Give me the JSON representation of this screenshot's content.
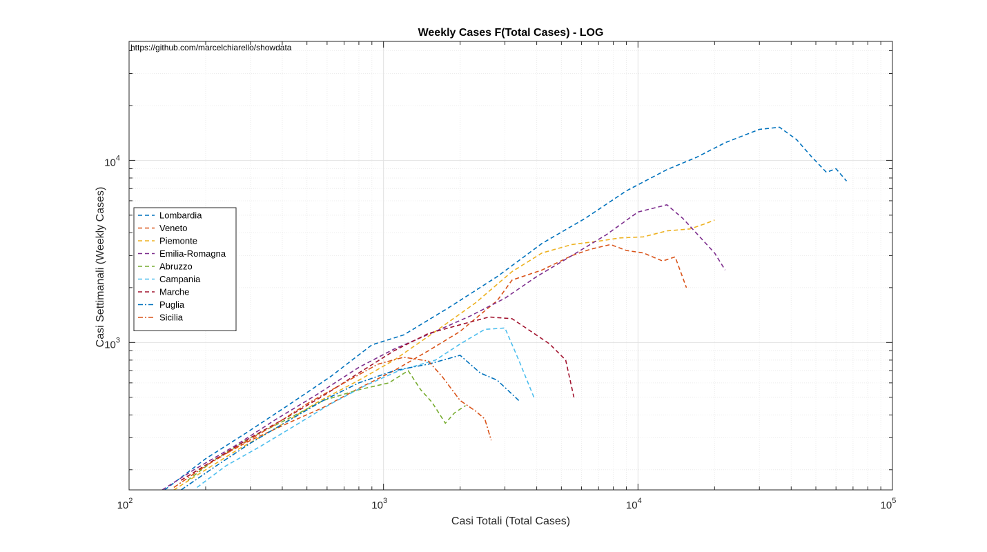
{
  "chart_data": {
    "type": "line",
    "title": "Weekly Cases F(Total Cases) - LOG",
    "xlabel": "Casi Totali (Total Cases)",
    "ylabel": "Casi Settimanali (Weekly Cases)",
    "xscale": "log",
    "yscale": "log",
    "xlim": [
      100,
      100000
    ],
    "ylim": [
      155,
      45000
    ],
    "xticks": [
      {
        "base": "10",
        "exp": "2"
      },
      {
        "base": "10",
        "exp": "3"
      },
      {
        "base": "10",
        "exp": "4"
      },
      {
        "base": "10",
        "exp": "5"
      }
    ],
    "yticks": [
      {
        "base": "10",
        "exp": "3"
      },
      {
        "base": "10",
        "exp": "4"
      }
    ],
    "grid": true,
    "legend_position": "left",
    "annotation": "https://github.com/marcelchiarello/showdata",
    "series": [
      {
        "name": "Lombardia",
        "color": "#0072BD",
        "dash": "dashed",
        "x": [
          138,
          200,
          290,
          420,
          620,
          900,
          1200,
          1800,
          2800,
          4200,
          6200,
          9000,
          13000,
          17000,
          22000,
          30000,
          36000,
          42000,
          48000,
          55000,
          60000,
          66000
        ],
        "y": [
          155,
          230,
          320,
          450,
          650,
          970,
          1100,
          1550,
          2300,
          3500,
          4800,
          6800,
          8900,
          10400,
          12500,
          14800,
          15200,
          13000,
          10500,
          8600,
          9000,
          7700
        ]
      },
      {
        "name": "Veneto",
        "color": "#D95319",
        "dash": "dashed",
        "x": [
          160,
          220,
          300,
          420,
          580,
          800,
          1100,
          1500,
          2000,
          2800,
          3200,
          4200,
          5500,
          6500,
          7800,
          9000,
          10500,
          12500,
          14000,
          15500
        ],
        "y": [
          175,
          230,
          290,
          360,
          440,
          560,
          700,
          900,
          1150,
          1700,
          2200,
          2500,
          3000,
          3250,
          3450,
          3200,
          3100,
          2800,
          2950,
          2000
        ]
      },
      {
        "name": "Piemonte",
        "color": "#EDB120",
        "dash": "dashed",
        "x": [
          150,
          200,
          270,
          380,
          550,
          800,
          1100,
          1600,
          2300,
          3200,
          4200,
          5500,
          7000,
          8500,
          10500,
          13000,
          16000,
          18500,
          20000
        ],
        "y": [
          155,
          200,
          260,
          340,
          470,
          620,
          800,
          1150,
          1650,
          2450,
          3100,
          3450,
          3600,
          3750,
          3800,
          4100,
          4200,
          4500,
          4700
        ]
      },
      {
        "name": "Emilia-Romagna",
        "color": "#7E2F8E",
        "dash": "dashed",
        "x": [
          135,
          180,
          260,
          380,
          550,
          800,
          1100,
          1600,
          2200,
          3000,
          4000,
          5500,
          7500,
          10000,
          13000,
          15000,
          17500,
          20000,
          22000
        ],
        "y": [
          155,
          200,
          270,
          380,
          520,
          730,
          920,
          1150,
          1400,
          1750,
          2300,
          3000,
          3900,
          5200,
          5700,
          4800,
          3800,
          3100,
          2500
        ]
      },
      {
        "name": "Abruzzo",
        "color": "#77AC30",
        "dash": "dashed",
        "x": [
          170,
          220,
          300,
          420,
          580,
          800,
          1050,
          1250,
          1400,
          1550,
          1750,
          1900,
          2100
        ],
        "y": [
          175,
          230,
          300,
          380,
          480,
          550,
          600,
          700,
          550,
          470,
          360,
          410,
          450
        ]
      },
      {
        "name": "Campania",
        "color": "#4DBEEE",
        "dash": "dashed",
        "x": [
          185,
          240,
          330,
          450,
          620,
          850,
          1150,
          1600,
          2000,
          2500,
          3000,
          3400,
          3900
        ],
        "y": [
          160,
          210,
          270,
          350,
          460,
          580,
          700,
          800,
          980,
          1180,
          1200,
          800,
          500
        ]
      },
      {
        "name": "Marche",
        "color": "#A2142F",
        "dash": "dashed",
        "x": [
          160,
          220,
          300,
          420,
          580,
          800,
          1100,
          1500,
          2000,
          2600,
          3200,
          3800,
          4500,
          5200,
          5600
        ],
        "y": [
          175,
          230,
          300,
          390,
          510,
          680,
          900,
          1120,
          1250,
          1380,
          1350,
          1150,
          980,
          800,
          500
        ]
      },
      {
        "name": "Puglia",
        "color": "#0072BD",
        "dash": "dashdot",
        "x": [
          160,
          220,
          300,
          420,
          580,
          800,
          1100,
          1500,
          2000,
          2400,
          2800,
          3200,
          3400
        ],
        "y": [
          155,
          210,
          280,
          370,
          480,
          600,
          700,
          760,
          850,
          680,
          620,
          520,
          480
        ]
      },
      {
        "name": "Sicilia",
        "color": "#D95319",
        "dash": "dashdot",
        "x": [
          150,
          200,
          270,
          370,
          500,
          700,
          950,
          1200,
          1500,
          1700,
          2000,
          2300,
          2500,
          2650
        ],
        "y": [
          160,
          210,
          270,
          350,
          460,
          600,
          760,
          830,
          790,
          650,
          480,
          420,
          380,
          290
        ]
      }
    ]
  }
}
